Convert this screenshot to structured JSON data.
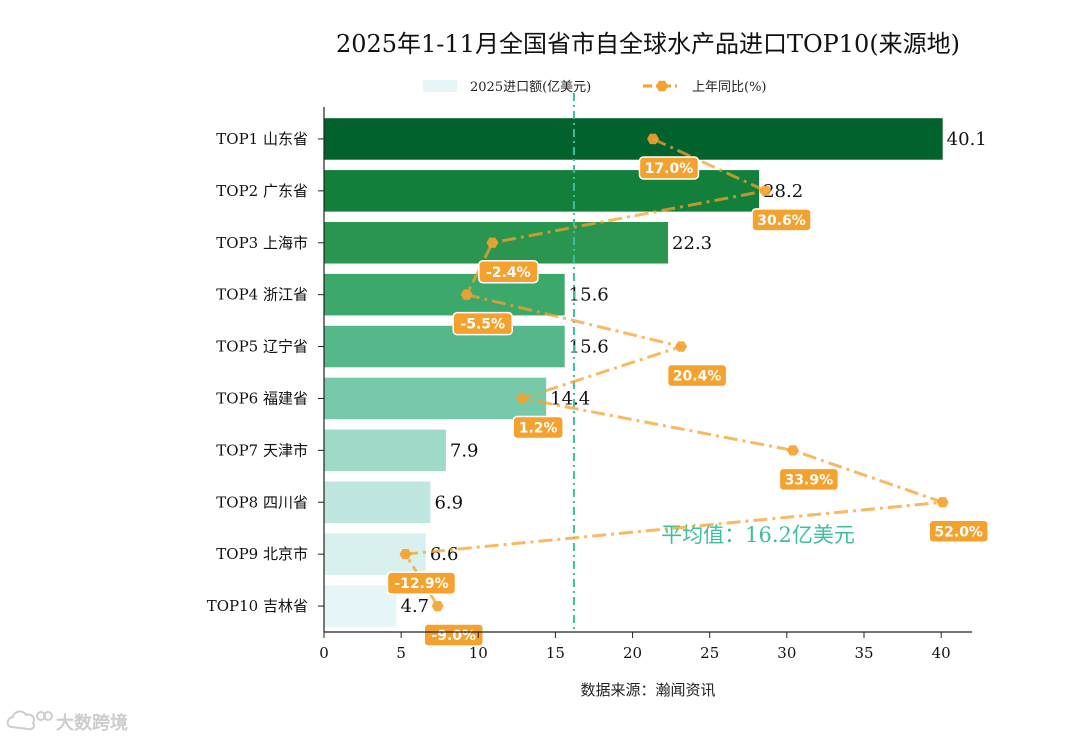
{
  "chart_data": {
    "type": "bar",
    "orientation": "horizontal",
    "title": "2025年1-11月全国省市自全球水产品进口TOP10(来源地)",
    "categories": [
      "TOP1 山东省",
      "TOP2 广东省",
      "TOP3 上海市",
      "TOP4 浙江省",
      "TOP5 辽宁省",
      "TOP6 福建省",
      "TOP7 天津市",
      "TOP8 四川省",
      "TOP9 北京市",
      "TOP10 吉林省"
    ],
    "series": [
      {
        "name": "2025进口额(亿美元)",
        "values": [
          40.1,
          28.2,
          22.3,
          15.6,
          15.6,
          14.4,
          7.9,
          6.9,
          6.6,
          4.7
        ],
        "value_labels": [
          "40.1",
          "28.2",
          "22.3",
          "15.6",
          "15.6",
          "14.4",
          "7.9",
          "6.9",
          "6.6",
          "4.7"
        ],
        "colors": [
          "#02622d",
          "#127f3b",
          "#2a954f",
          "#3da86b",
          "#55b88b",
          "#76caa9",
          "#9fdac8",
          "#c0e7df",
          "#d8f1ee",
          "#e6f5f7"
        ]
      },
      {
        "name": "上年同比(%)",
        "type": "line",
        "values": [
          17.0,
          30.6,
          -2.4,
          -5.5,
          20.4,
          1.2,
          33.9,
          52.0,
          -12.9,
          -9.0
        ],
        "value_labels": [
          "17.0%",
          "30.6%",
          "-2.4%",
          "-5.5%",
          "20.4%",
          "1.2%",
          "33.9%",
          "52.0%",
          "-12.9%",
          "-9.0%"
        ],
        "range": [
          -19.2,
          52.0
        ],
        "color": "#f5a12e"
      }
    ],
    "xlim": [
      0,
      42
    ],
    "xticks": [
      0,
      5,
      10,
      15,
      20,
      25,
      30,
      35,
      40
    ],
    "xtick_labels": [
      "0",
      "5",
      "10",
      "15",
      "20",
      "25",
      "30",
      "35",
      "40"
    ],
    "xlabel": "数据来源：瀚闻资讯",
    "ylabel": "",
    "average": {
      "value": 16.2,
      "label": "平均值：16.2亿美元",
      "color": "#3dbf9f"
    },
    "legend": {
      "placement": "top-center"
    }
  },
  "watermark": {
    "text": "大数跨境",
    "icon": "cloud-logo-icon"
  }
}
